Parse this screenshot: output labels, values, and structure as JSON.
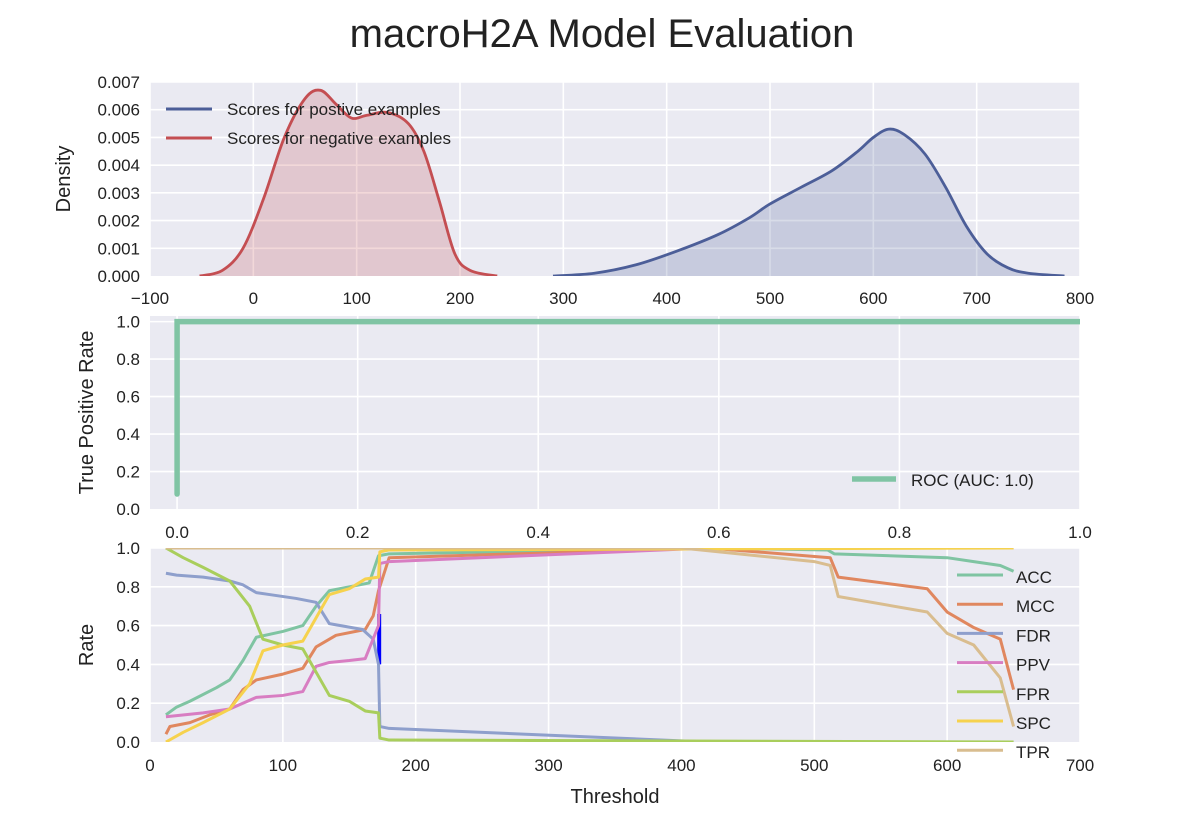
{
  "figure": {
    "title": "macroH2A Model Evaluation",
    "colors": {
      "background": "#EAEAF2",
      "grid": "#FFFFFF",
      "positive": "#4C5E98",
      "negative": "#C44E52",
      "roc": "#80C4A4",
      "spike": "#0000FF"
    }
  },
  "chart_data": [
    {
      "type": "area",
      "title": "",
      "xlabel": "",
      "ylabel": "Density",
      "xlim": [
        -100,
        800
      ],
      "ylim": [
        0,
        0.007
      ],
      "xticks": [
        -100,
        0,
        100,
        200,
        300,
        400,
        500,
        600,
        700,
        800
      ],
      "xtick_labels": [
        "−100",
        "0",
        "100",
        "200",
        "300",
        "400",
        "500",
        "600",
        "700",
        "800"
      ],
      "yticks": [
        0.0,
        0.001,
        0.002,
        0.003,
        0.004,
        0.005,
        0.006,
        0.007
      ],
      "ytick_labels": [
        "0.000",
        "0.001",
        "0.002",
        "0.003",
        "0.004",
        "0.005",
        "0.006",
        "0.007"
      ],
      "grid": true,
      "legend_position": "top-left",
      "series": [
        {
          "name": "Scores for postive examples",
          "color": "#4C5E98",
          "x": [
            290,
            330,
            370,
            410,
            450,
            480,
            500,
            530,
            560,
            585,
            600,
            615,
            630,
            650,
            670,
            690,
            710,
            730,
            750,
            785
          ],
          "y": [
            0.0,
            0.0001,
            0.0004,
            0.0009,
            0.0015,
            0.0021,
            0.0026,
            0.0032,
            0.0038,
            0.0045,
            0.005,
            0.0053,
            0.0051,
            0.0044,
            0.0032,
            0.0018,
            0.0008,
            0.0003,
            0.0001,
            0.0
          ]
        },
        {
          "name": "Scores for negative examples",
          "color": "#C44E52",
          "x": [
            -52,
            -30,
            -10,
            10,
            30,
            50,
            65,
            80,
            95,
            110,
            130,
            150,
            165,
            180,
            195,
            210,
            236
          ],
          "y": [
            0.0,
            0.0002,
            0.001,
            0.0028,
            0.005,
            0.0064,
            0.0067,
            0.0062,
            0.0057,
            0.0058,
            0.0059,
            0.0055,
            0.0045,
            0.0027,
            0.0008,
            0.0002,
            0.0
          ]
        }
      ]
    },
    {
      "type": "line",
      "title": "",
      "xlabel": "",
      "ylabel": "True Positive Rate",
      "xlim": [
        -0.03,
        1.0
      ],
      "ylim": [
        0,
        1.03
      ],
      "xticks": [
        0.0,
        0.2,
        0.4,
        0.6,
        0.8,
        1.0
      ],
      "xtick_labels": [
        "0.0",
        "0.2",
        "0.4",
        "0.6",
        "0.8",
        "1.0"
      ],
      "yticks": [
        0.0,
        0.2,
        0.4,
        0.6,
        0.8,
        1.0
      ],
      "ytick_labels": [
        "0.0",
        "0.2",
        "0.4",
        "0.6",
        "0.8",
        "1.0"
      ],
      "grid": true,
      "legend_position": "bottom-right",
      "series": [
        {
          "name": "ROC (AUC: 1.0)",
          "color": "#80C4A4",
          "x": [
            0.0,
            0.0,
            1.0
          ],
          "y": [
            0.08,
            1.0,
            1.0
          ]
        }
      ]
    },
    {
      "type": "line",
      "title": "",
      "xlabel": "Threshold",
      "ylabel": "Rate",
      "xlim": [
        0,
        700
      ],
      "ylim": [
        0,
        1.0
      ],
      "xticks": [
        0,
        100,
        200,
        300,
        400,
        500,
        600,
        700
      ],
      "xtick_labels": [
        "0",
        "100",
        "200",
        "300",
        "400",
        "500",
        "600",
        "700"
      ],
      "yticks": [
        0.0,
        0.2,
        0.4,
        0.6,
        0.8,
        1.0
      ],
      "ytick_labels": [
        "0.0",
        "0.2",
        "0.4",
        "0.6",
        "0.8",
        "1.0"
      ],
      "grid": true,
      "legend_position": "right",
      "series": [
        {
          "name": "ACC",
          "color": "#7FC4A2",
          "x": [
            12,
            20,
            30,
            50,
            60,
            70,
            80,
            100,
            115,
            125,
            135,
            150,
            165,
            172,
            180,
            420,
            510,
            515,
            600,
            620,
            640,
            650
          ],
          "y": [
            0.14,
            0.18,
            0.21,
            0.28,
            0.32,
            0.42,
            0.54,
            0.57,
            0.6,
            0.7,
            0.78,
            0.8,
            0.82,
            0.96,
            0.97,
            1.0,
            0.99,
            0.97,
            0.95,
            0.93,
            0.91,
            0.88
          ]
        },
        {
          "name": "MCC",
          "color": "#E0875F",
          "x": [
            12,
            15,
            30,
            45,
            60,
            70,
            80,
            100,
            115,
            125,
            140,
            162,
            168,
            172,
            180,
            420,
            512,
            518,
            585,
            600,
            620,
            640,
            650
          ],
          "y": [
            0.04,
            0.08,
            0.1,
            0.14,
            0.17,
            0.27,
            0.32,
            0.35,
            0.38,
            0.49,
            0.55,
            0.58,
            0.65,
            0.78,
            0.95,
            1.0,
            0.95,
            0.85,
            0.79,
            0.67,
            0.59,
            0.53,
            0.27
          ]
        },
        {
          "name": "FDR",
          "color": "#8E9FCC",
          "x": [
            12,
            20,
            40,
            60,
            70,
            80,
            90,
            110,
            125,
            135,
            160,
            168,
            172,
            173,
            180,
            420,
            650
          ],
          "y": [
            0.87,
            0.86,
            0.85,
            0.83,
            0.81,
            0.77,
            0.76,
            0.74,
            0.72,
            0.61,
            0.58,
            0.53,
            0.4,
            0.08,
            0.07,
            0.0,
            0.0
          ]
        },
        {
          "name": "PPV",
          "color": "#D87DC2",
          "x": [
            12,
            40,
            60,
            80,
            100,
            115,
            125,
            135,
            150,
            162,
            172,
            173,
            180,
            420,
            512,
            518,
            585,
            600,
            650
          ],
          "y": [
            0.13,
            0.15,
            0.17,
            0.23,
            0.24,
            0.26,
            0.39,
            0.41,
            0.42,
            0.43,
            0.6,
            0.92,
            0.93,
            1.0,
            1.0,
            1.0,
            1.0,
            1.0,
            1.0
          ]
        },
        {
          "name": "FPR",
          "color": "#A9CE5C",
          "x": [
            12,
            25,
            40,
            60,
            75,
            85,
            100,
            115,
            125,
            135,
            150,
            162,
            172,
            173,
            180,
            650
          ],
          "y": [
            1.0,
            0.95,
            0.9,
            0.83,
            0.7,
            0.53,
            0.5,
            0.48,
            0.36,
            0.24,
            0.21,
            0.16,
            0.15,
            0.02,
            0.01,
            0.0
          ]
        },
        {
          "name": "SPC",
          "color": "#F6D24E",
          "x": [
            12,
            25,
            40,
            60,
            75,
            85,
            100,
            115,
            125,
            135,
            150,
            162,
            172,
            173,
            180,
            650
          ],
          "y": [
            0.0,
            0.05,
            0.1,
            0.17,
            0.3,
            0.47,
            0.5,
            0.52,
            0.64,
            0.76,
            0.79,
            0.84,
            0.85,
            0.98,
            0.99,
            1.0
          ]
        },
        {
          "name": "TPR",
          "color": "#D9BD8F",
          "x": [
            12,
            400,
            500,
            512,
            518,
            585,
            600,
            620,
            640,
            650
          ],
          "y": [
            1.0,
            1.0,
            0.93,
            0.91,
            0.75,
            0.67,
            0.56,
            0.5,
            0.33,
            0.08
          ]
        }
      ]
    }
  ]
}
